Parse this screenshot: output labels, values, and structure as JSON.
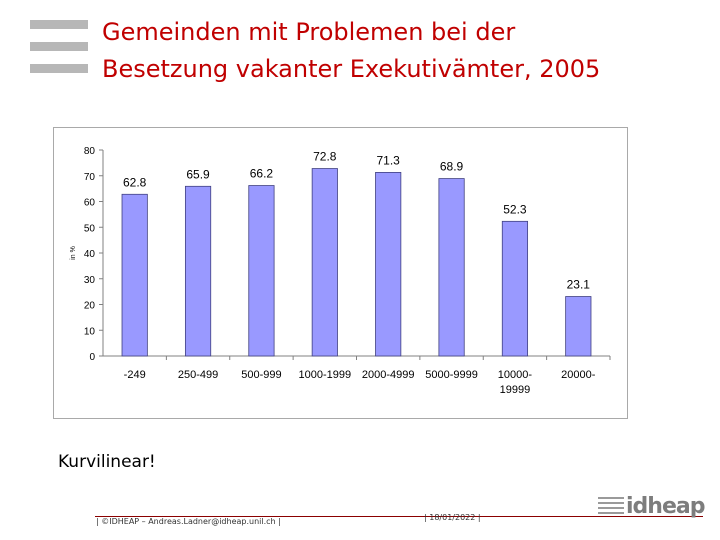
{
  "slide": {
    "title_line1": "Gemeinden mit Problemen bei der",
    "title_line2": "Besetzung vakanter Exekutivämter, 2005",
    "note": "Kurvilinear!"
  },
  "footer": {
    "left_text": "| ©IDHEAP – Andreas.Ladner@idheap.unil.ch |",
    "date_text": "| 18/01/2022 |",
    "brand": "idheap"
  },
  "colors": {
    "title": "#c00000",
    "bar_fill": "#9999ff",
    "bar_stroke": "#404080"
  },
  "chart_data": {
    "type": "bar",
    "categories": [
      "-249",
      "250-499",
      "500-999",
      "1000-1999",
      "2000-4999",
      "5000-9999",
      "10000-\n19999",
      "20000-"
    ],
    "values": [
      62.8,
      65.9,
      66.2,
      72.8,
      71.3,
      68.9,
      52.3,
      23.1
    ],
    "value_labels": [
      "62.8",
      "65.9",
      "66.2",
      "72.8",
      "71.3",
      "68.9",
      "52.3",
      "23.1"
    ],
    "yticks": [
      "0",
      "10",
      "20",
      "30",
      "40",
      "50",
      "60",
      "70",
      "80"
    ],
    "ylabel": "in %",
    "xlabel": "",
    "title": "",
    "ylim": [
      0,
      80
    ],
    "grid": false
  }
}
